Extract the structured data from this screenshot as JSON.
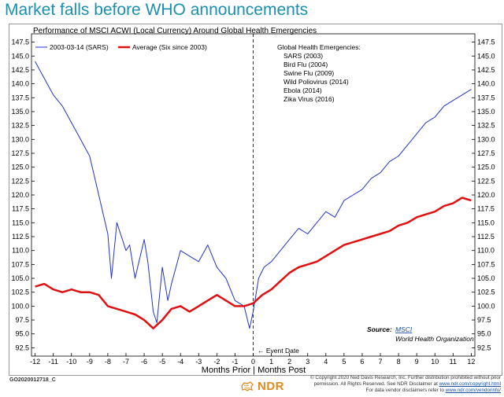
{
  "headline": "Market falls before WHO announcements",
  "chart_data": {
    "type": "line",
    "title": "Performance of MSCI ACWI (Local Currency) Around Global Health Emergencies",
    "xlabel": "Months Prior | Months Post",
    "xlim": [
      -12.2,
      12.2
    ],
    "ylim": [
      91.0,
      149.0
    ],
    "x_ticks": [
      -12,
      -11,
      -10,
      -9,
      -8,
      -7,
      -6,
      -5,
      -4,
      -3,
      -2,
      -1,
      0,
      1,
      2,
      3,
      4,
      5,
      6,
      7,
      8,
      9,
      10,
      11,
      12
    ],
    "x_tick_labels": [
      "-12",
      "-11",
      "-10",
      "-9",
      "-8",
      "-7",
      "-6",
      "-5",
      "-4",
      "-3",
      "-2",
      "-1",
      "0",
      "1",
      "2",
      "3",
      "4",
      "5",
      "6",
      "7",
      "8",
      "9",
      "10",
      "11",
      "12"
    ],
    "y_ticks": [
      92.5,
      95.0,
      97.5,
      100.0,
      102.5,
      105.0,
      107.5,
      110.0,
      112.5,
      115.0,
      117.5,
      120.0,
      122.5,
      125.0,
      127.5,
      130.0,
      132.5,
      135.0,
      137.5,
      140.0,
      142.5,
      145.0,
      147.5
    ],
    "y_tick_labels": [
      "92.5",
      "95.0",
      "97.5",
      "100.0",
      "102.5",
      "105.0",
      "107.5",
      "110.0",
      "112.5",
      "115.0",
      "117.5",
      "120.0",
      "122.5",
      "125.0",
      "127.5",
      "130.0",
      "132.5",
      "135.0",
      "137.5",
      "140.0",
      "142.5",
      "145.0",
      "147.5"
    ],
    "series": [
      {
        "name": "2003-03-14 (SARS)",
        "color": "#2233cc",
        "x": [
          -12,
          -11.5,
          -11,
          -10.5,
          -10,
          -9.5,
          -9,
          -8.5,
          -8,
          -7.8,
          -7.5,
          -7,
          -6.8,
          -6.5,
          -6,
          -5.8,
          -5.5,
          -5.3,
          -5,
          -4.7,
          -4.5,
          -4,
          -3.5,
          -3,
          -2.5,
          -2,
          -1.5,
          -1,
          -0.5,
          -0.2,
          0,
          0.3,
          0.6,
          1,
          1.5,
          2,
          2.5,
          3,
          3.5,
          4,
          4.5,
          5,
          5.5,
          6,
          6.5,
          7,
          7.5,
          8,
          8.5,
          9,
          9.5,
          10,
          10.5,
          11,
          11.5,
          12
        ],
        "y": [
          144,
          141,
          138,
          136,
          133,
          130,
          127,
          120,
          113,
          105,
          115,
          110,
          111,
          105,
          112,
          108,
          99,
          97,
          107,
          101,
          104,
          110,
          109,
          108,
          111,
          107,
          105,
          101,
          100,
          96,
          99,
          105,
          107,
          108,
          110,
          112,
          114,
          113,
          115,
          117,
          116,
          119,
          120,
          121,
          123,
          124,
          126,
          127,
          129,
          131,
          133,
          134,
          136,
          137,
          138,
          139
        ]
      },
      {
        "name": "Average (Six since 2003)",
        "color": "#e01010",
        "x": [
          -12,
          -11.5,
          -11,
          -10.5,
          -10,
          -9.5,
          -9,
          -8.5,
          -8,
          -7.5,
          -7,
          -6.5,
          -6,
          -5.5,
          -5,
          -4.5,
          -4,
          -3.5,
          -3,
          -2.5,
          -2,
          -1.5,
          -1,
          -0.5,
          0,
          0.5,
          1,
          1.5,
          2,
          2.5,
          3,
          3.5,
          4,
          4.5,
          5,
          5.5,
          6,
          6.5,
          7,
          7.5,
          8,
          8.5,
          9,
          9.5,
          10,
          10.5,
          11,
          11.5,
          12
        ],
        "y": [
          103.5,
          104,
          103,
          102.5,
          103,
          102.5,
          102.5,
          102,
          100,
          99.5,
          99,
          98.5,
          97.5,
          96,
          97.5,
          99.5,
          100,
          99,
          100,
          101,
          102,
          101,
          100,
          100,
          100.5,
          102,
          103,
          104.5,
          106,
          107,
          107.5,
          108,
          109,
          110,
          111,
          111.5,
          112,
          112.5,
          113,
          113.5,
          114.5,
          115,
          116,
          116.5,
          117,
          118,
          118.5,
          119.5,
          119
        ]
      }
    ],
    "annotations": {
      "emergencies_title": "Global Health Emergencies:",
      "emergencies": [
        "SARS (2003)",
        "Bird Flu (2004)",
        "Swine Flu (2009)",
        "Wild Poliovirus (2014)",
        "Ebola (2014)",
        "Zika Virus (2016)"
      ],
      "event_label": "← Event Date",
      "source_label": "Source:",
      "source_link": "MSCI",
      "source_org": "World Health Organization"
    }
  },
  "footer": {
    "code": "GO2020012718_C",
    "brand": "NDR",
    "copyright": "© Copyright 2020 Ned Davis Research, Inc. Further distribution prohibited without prior",
    "line2": "permission. All Rights Reserved. See NDR Disclaimer at",
    "line2_link": "www.ndr.com/copyright.html",
    "line3": "For data vendor disclaimers refer to",
    "line3_link": "www.ndr.com/vendorinfo/"
  }
}
